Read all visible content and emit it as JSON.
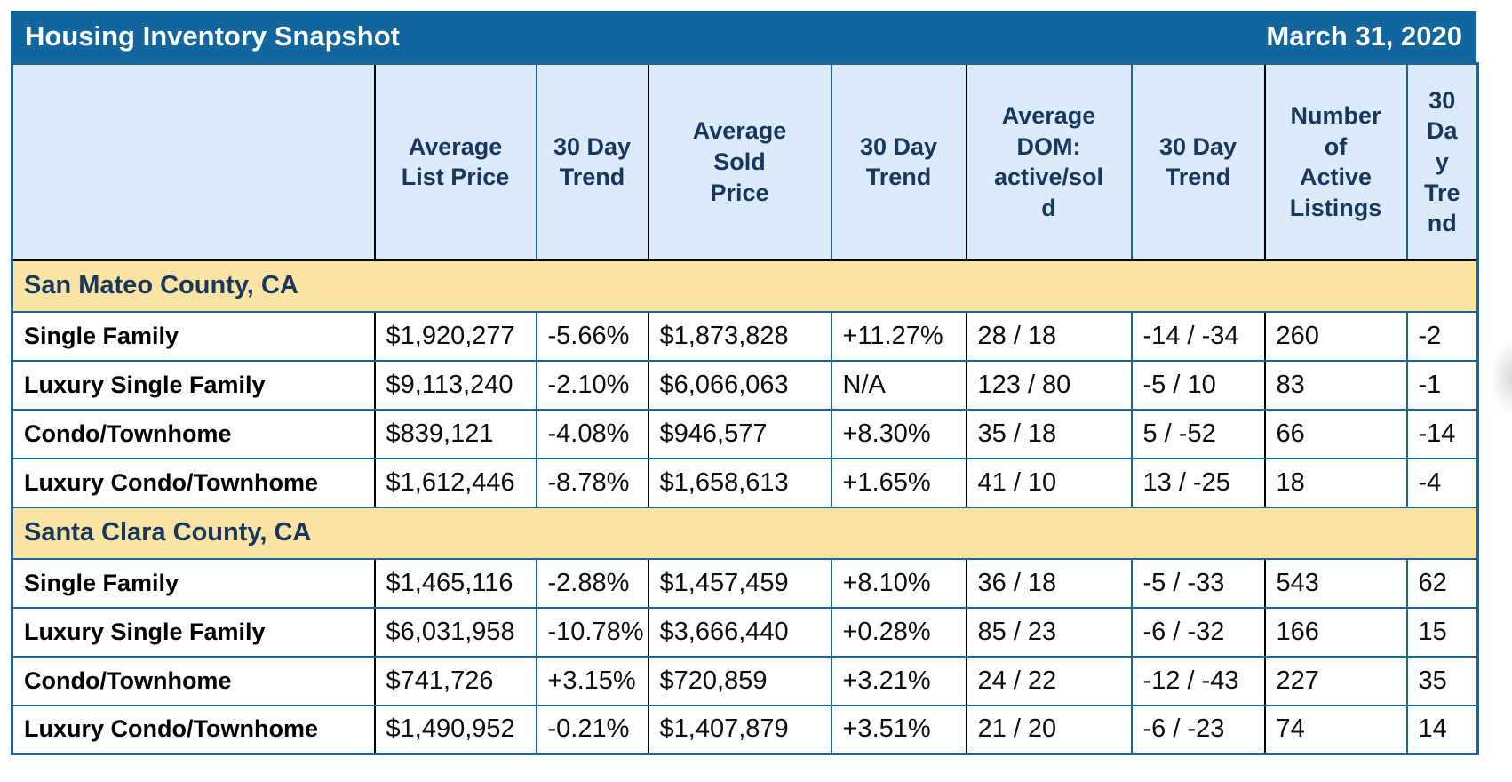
{
  "title_bar": {
    "title": "Housing Inventory Snapshot",
    "date": "March 31, 2020"
  },
  "display": {
    "headers": [
      "",
      "Average\nList Price",
      "30 Day\nTrend",
      "Average\nSold\nPrice",
      "30 Day\nTrend",
      "Average\nDOM:\nactive/sol\nd",
      "30 Day\nTrend",
      "Number\nof\nActive\nListings",
      "30\nDa\ny\nTre\nnd"
    ]
  },
  "colors": {
    "title_bar_bg": "#11669e",
    "header_bg": "#dcebfc",
    "section_bg": "#fde3a4",
    "navy_text": "#17375d",
    "border_blue": "#1d6598",
    "border_black": "#000000",
    "negative": "#fe0000",
    "positive": "#007a00"
  },
  "chart_data": {
    "type": "table",
    "title": "Housing Inventory Snapshot",
    "date": "March 31, 2020",
    "columns": [
      "",
      "Average List Price",
      "30 Day Trend",
      "Average Sold Price",
      "30 Day Trend",
      "Average DOM: active/sold",
      "30 Day Trend",
      "Number of Active Listings",
      "30 Day Trend"
    ],
    "sections": [
      {
        "name": "San Mateo County, CA",
        "rows": [
          {
            "label": "Single Family",
            "values": [
              "$1,920,277",
              "-5.66%",
              "$1,873,828",
              "+11.27%",
              "28 / 18",
              "-14 / -34",
              "260",
              "-2"
            ],
            "tones": [
              "n",
              "neg",
              "n",
              "pos",
              "n",
              "n",
              "n",
              "n"
            ]
          },
          {
            "label": "Luxury Single Family",
            "values": [
              "$9,113,240",
              "-2.10%",
              "$6,066,063",
              "N/A",
              "123 / 80",
              "-5 / 10",
              "83",
              "-1"
            ],
            "tones": [
              "n",
              "neg",
              "n",
              "n",
              "n",
              "n",
              "n",
              "n"
            ]
          },
          {
            "label": "Condo/Townhome",
            "values": [
              "$839,121",
              "-4.08%",
              "$946,577",
              "+8.30%",
              "35 / 18",
              "5 / -52",
              "66",
              "-14"
            ],
            "tones": [
              "n",
              "neg",
              "n",
              "pos",
              "n",
              "n",
              "n",
              "n"
            ]
          },
          {
            "label": "Luxury Condo/Townhome",
            "values": [
              "$1,612,446",
              "-8.78%",
              "$1,658,613",
              "+1.65%",
              "41 / 10",
              "13 / -25",
              "18",
              "-4"
            ],
            "tones": [
              "n",
              "neg",
              "n",
              "pos",
              "n",
              "n",
              "n",
              "n"
            ]
          }
        ]
      },
      {
        "name": "Santa Clara County, CA",
        "rows": [
          {
            "label": "Single Family",
            "values": [
              "$1,465,116",
              "-2.88%",
              "$1,457,459",
              "+8.10%",
              "36 / 18",
              "-5 / -33",
              "543",
              "62"
            ],
            "tones": [
              "n",
              "neg",
              "n",
              "pos",
              "n",
              "n",
              "n",
              "n"
            ]
          },
          {
            "label": "Luxury Single Family",
            "values": [
              "$6,031,958",
              "-10.78%",
              "$3,666,440",
              "+0.28%",
              "85 / 23",
              "-6 / -32",
              "166",
              "15"
            ],
            "tones": [
              "n",
              "neg",
              "n",
              "pos",
              "n",
              "n",
              "n",
              "n"
            ]
          },
          {
            "label": "Condo/Townhome",
            "values": [
              "$741,726",
              "+3.15%",
              "$720,859",
              "+3.21%",
              "24 / 22",
              "-12 / -43",
              "227",
              "35"
            ],
            "tones": [
              "n",
              "pos",
              "n",
              "pos",
              "n",
              "n",
              "n",
              "n"
            ]
          },
          {
            "label": "Luxury Condo/Townhome",
            "values": [
              "$1,490,952",
              "-0.21%",
              "$1,407,879",
              "+3.51%",
              "21 / 20",
              "-6 / -23",
              "74",
              "14"
            ],
            "tones": [
              "n",
              "neg",
              "n",
              "pos",
              "n",
              "n",
              "n",
              "n"
            ]
          }
        ]
      }
    ]
  }
}
